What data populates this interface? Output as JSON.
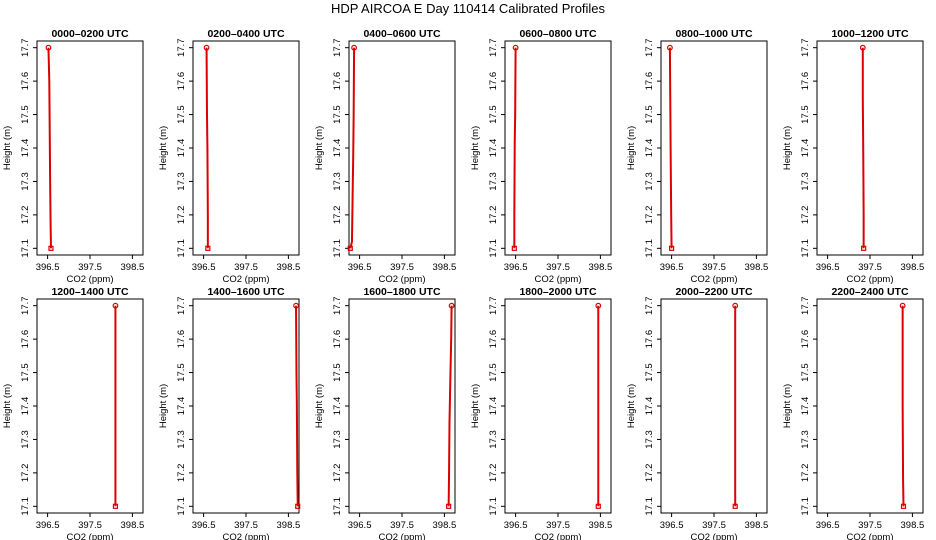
{
  "title": "HDP AIRCOA E  Day 110414  Calibrated Profiles",
  "colors": {
    "series": "#dd0000",
    "axis": "#000000"
  },
  "chart_data": [
    {
      "type": "line",
      "title": "0000–0200 UTC",
      "xlabel": "CO2 (ppm)",
      "ylabel": "Height (m)",
      "xlim": [
        396.25,
        398.75
      ],
      "ylim": [
        17.08,
        17.72
      ],
      "xticks": [
        "396.5",
        "397.5",
        "398.5"
      ],
      "yticks": [
        "17.1",
        "17.2",
        "17.3",
        "17.4",
        "17.5",
        "17.6",
        "17.7"
      ],
      "x": [
        396.52,
        396.54,
        396.55,
        396.56,
        396.57,
        396.58
      ],
      "y": [
        17.7,
        17.6,
        17.45,
        17.3,
        17.18,
        17.1
      ]
    },
    {
      "type": "line",
      "title": "0200–0400 UTC",
      "xlabel": "CO2 (ppm)",
      "ylabel": "Height (m)",
      "xlim": [
        396.25,
        398.75
      ],
      "ylim": [
        17.08,
        17.72
      ],
      "xticks": [
        "396.5",
        "397.5",
        "398.5"
      ],
      "yticks": [
        "17.1",
        "17.2",
        "17.3",
        "17.4",
        "17.5",
        "17.6",
        "17.7"
      ],
      "x": [
        396.57,
        396.58,
        396.59,
        396.6,
        396.6
      ],
      "y": [
        17.7,
        17.5,
        17.4,
        17.2,
        17.1
      ]
    },
    {
      "type": "line",
      "title": "0400–0600 UTC",
      "xlabel": "CO2 (ppm)",
      "ylabel": "Height (m)",
      "xlim": [
        396.25,
        398.75
      ],
      "ylim": [
        17.08,
        17.72
      ],
      "xticks": [
        "396.5",
        "397.5",
        "398.5"
      ],
      "yticks": [
        "17.1",
        "17.2",
        "17.3",
        "17.4",
        "17.5",
        "17.6",
        "17.7"
      ],
      "x": [
        396.37,
        396.36,
        396.35,
        396.34,
        396.32,
        396.28
      ],
      "y": [
        17.7,
        17.5,
        17.38,
        17.3,
        17.12,
        17.1
      ]
    },
    {
      "type": "line",
      "title": "0600–0800 UTC",
      "xlabel": "CO2 (ppm)",
      "ylabel": "Height (m)",
      "xlim": [
        396.25,
        398.75
      ],
      "ylim": [
        17.08,
        17.72
      ],
      "xticks": [
        "396.5",
        "397.5",
        "398.5"
      ],
      "yticks": [
        "17.1",
        "17.2",
        "17.3",
        "17.4",
        "17.5",
        "17.6",
        "17.7"
      ],
      "x": [
        396.5,
        396.49,
        396.48,
        396.47,
        396.47
      ],
      "y": [
        17.7,
        17.5,
        17.42,
        17.2,
        17.1
      ]
    },
    {
      "type": "line",
      "title": "0800–1000 UTC",
      "xlabel": "CO2 (ppm)",
      "ylabel": "Height (m)",
      "xlim": [
        396.25,
        398.75
      ],
      "ylim": [
        17.08,
        17.72
      ],
      "xticks": [
        "396.5",
        "397.5",
        "398.5"
      ],
      "yticks": [
        "17.1",
        "17.2",
        "17.3",
        "17.4",
        "17.5",
        "17.6",
        "17.7"
      ],
      "x": [
        396.46,
        396.47,
        396.48,
        396.49,
        396.5
      ],
      "y": [
        17.7,
        17.52,
        17.35,
        17.2,
        17.1
      ]
    },
    {
      "type": "line",
      "title": "1000–1200 UTC",
      "xlabel": "CO2 (ppm)",
      "ylabel": "Height (m)",
      "xlim": [
        396.25,
        398.75
      ],
      "ylim": [
        17.08,
        17.72
      ],
      "xticks": [
        "396.5",
        "397.5",
        "398.5"
      ],
      "yticks": [
        "17.1",
        "17.2",
        "17.3",
        "17.4",
        "17.5",
        "17.6",
        "17.7"
      ],
      "x": [
        397.33,
        397.33,
        397.34,
        397.35,
        397.35
      ],
      "y": [
        17.7,
        17.55,
        17.4,
        17.2,
        17.1
      ]
    },
    {
      "type": "line",
      "title": "1200–1400 UTC",
      "xlabel": "CO2 (ppm)",
      "ylabel": "Height (m)",
      "xlim": [
        396.25,
        398.75
      ],
      "ylim": [
        17.08,
        17.72
      ],
      "xticks": [
        "396.5",
        "397.5",
        "398.5"
      ],
      "yticks": [
        "17.1",
        "17.2",
        "17.3",
        "17.4",
        "17.5",
        "17.6",
        "17.7"
      ],
      "x": [
        398.1,
        398.1,
        398.1,
        398.1,
        398.1
      ],
      "y": [
        17.7,
        17.55,
        17.4,
        17.2,
        17.1
      ]
    },
    {
      "type": "line",
      "title": "1400–1600 UTC",
      "xlabel": "CO2 (ppm)",
      "ylabel": "Height (m)",
      "xlim": [
        396.25,
        398.75
      ],
      "ylim": [
        17.08,
        17.72
      ],
      "xticks": [
        "396.5",
        "397.5",
        "398.5"
      ],
      "yticks": [
        "17.1",
        "17.2",
        "17.3",
        "17.4",
        "17.5",
        "17.6",
        "17.7"
      ],
      "x": [
        398.68,
        398.69,
        398.7,
        398.71,
        398.72
      ],
      "y": [
        17.7,
        17.5,
        17.4,
        17.2,
        17.1
      ]
    },
    {
      "type": "line",
      "title": "1600–1800 UTC",
      "xlabel": "CO2 (ppm)",
      "ylabel": "Height (m)",
      "xlim": [
        396.25,
        398.75
      ],
      "ylim": [
        17.08,
        17.72
      ],
      "xticks": [
        "396.5",
        "397.5",
        "398.5"
      ],
      "yticks": [
        "17.1",
        "17.2",
        "17.3",
        "17.4",
        "17.5",
        "17.6",
        "17.7"
      ],
      "x": [
        398.67,
        398.66,
        398.64,
        398.62,
        398.61,
        398.6
      ],
      "y": [
        17.7,
        17.6,
        17.48,
        17.35,
        17.2,
        17.1
      ]
    },
    {
      "type": "line",
      "title": "1800–2000 UTC",
      "xlabel": "CO2 (ppm)",
      "ylabel": "Height (m)",
      "xlim": [
        396.25,
        398.75
      ],
      "ylim": [
        17.08,
        17.72
      ],
      "xticks": [
        "396.5",
        "397.5",
        "398.5"
      ],
      "yticks": [
        "17.1",
        "17.2",
        "17.3",
        "17.4",
        "17.5",
        "17.6",
        "17.7"
      ],
      "x": [
        398.45,
        398.45,
        398.45,
        398.45,
        398.45
      ],
      "y": [
        17.7,
        17.55,
        17.4,
        17.2,
        17.1
      ]
    },
    {
      "type": "line",
      "title": "2000–2200 UTC",
      "xlabel": "CO2 (ppm)",
      "ylabel": "Height (m)",
      "xlim": [
        396.25,
        398.75
      ],
      "ylim": [
        17.08,
        17.72
      ],
      "xticks": [
        "396.5",
        "397.5",
        "398.5"
      ],
      "yticks": [
        "17.1",
        "17.2",
        "17.3",
        "17.4",
        "17.5",
        "17.6",
        "17.7"
      ],
      "x": [
        398.0,
        398.0,
        398.0,
        398.0,
        398.0
      ],
      "y": [
        17.7,
        17.55,
        17.4,
        17.2,
        17.1
      ]
    },
    {
      "type": "line",
      "title": "2200–2400 UTC",
      "xlabel": "CO2 (ppm)",
      "ylabel": "Height (m)",
      "xlim": [
        396.25,
        398.75
      ],
      "ylim": [
        17.08,
        17.72
      ],
      "xticks": [
        "396.5",
        "397.5",
        "398.5"
      ],
      "yticks": [
        "17.1",
        "17.2",
        "17.3",
        "17.4",
        "17.5",
        "17.6",
        "17.7"
      ],
      "x": [
        398.27,
        398.27,
        398.27,
        398.28,
        398.29
      ],
      "y": [
        17.7,
        17.55,
        17.4,
        17.18,
        17.1
      ]
    }
  ]
}
